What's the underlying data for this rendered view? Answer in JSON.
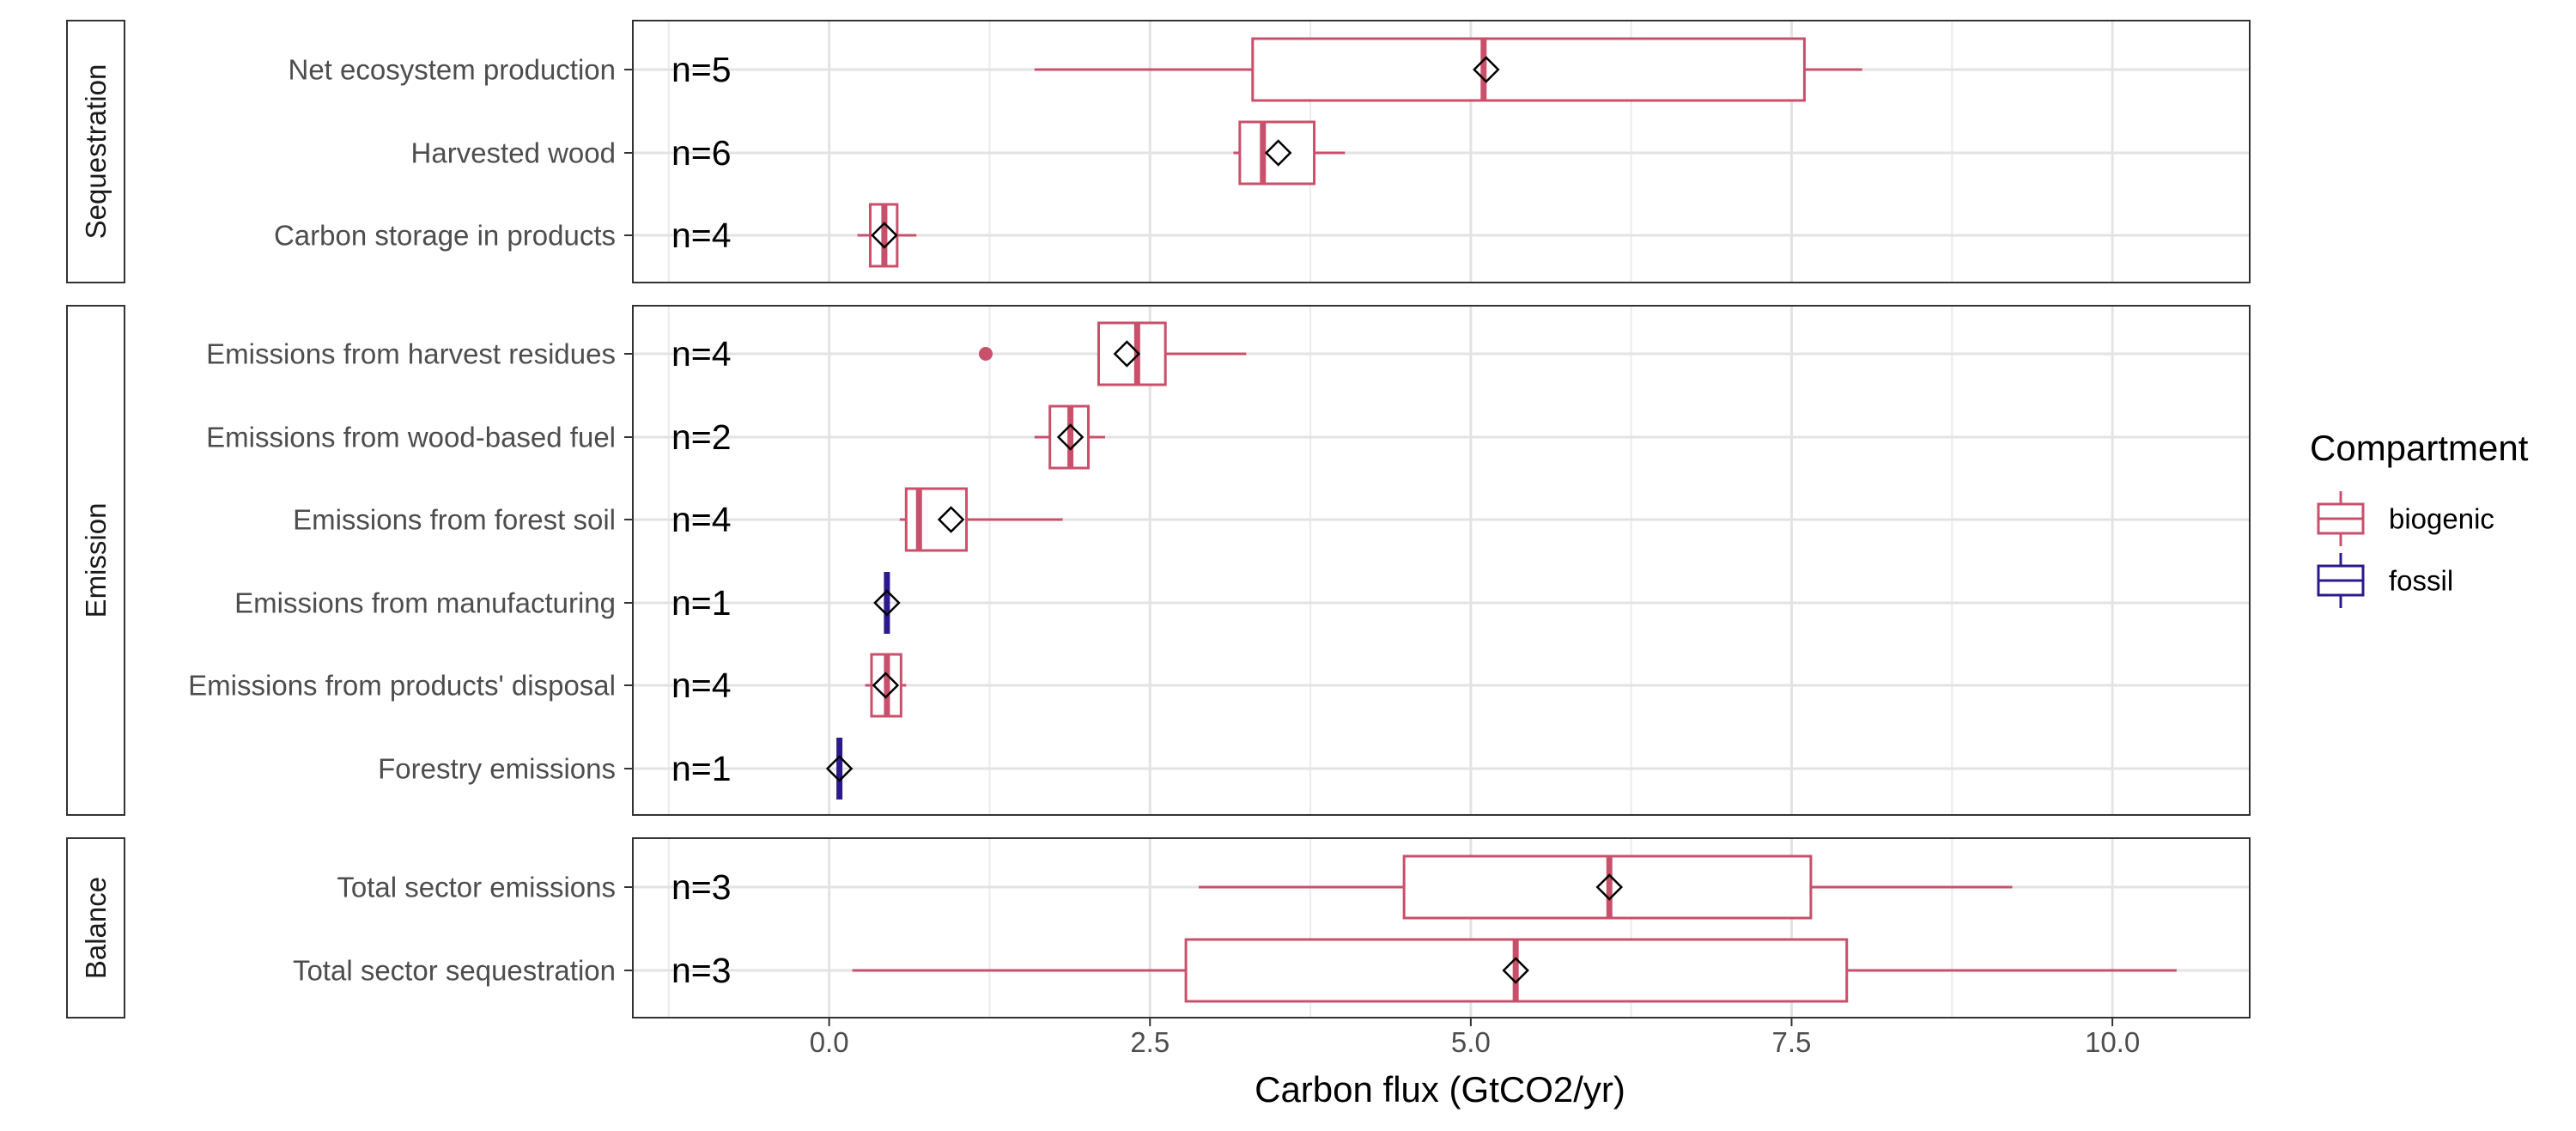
{
  "chart_data": {
    "type": "boxplot",
    "title": "",
    "xlabel": "Carbon flux (GtCO2/yr)",
    "ylabel": "",
    "xlim": [
      -1.53,
      11.07
    ],
    "x_ticks": [
      "0.0",
      "2.5",
      "5.0",
      "7.5",
      "10.0"
    ],
    "x_tick_values": [
      0,
      2.5,
      5,
      7.5,
      10
    ],
    "grid": true,
    "legend": {
      "title": "Compartment",
      "position": "right",
      "entries": [
        {
          "label": "biogenic",
          "color": "#c9506b"
        },
        {
          "label": "fossil",
          "color": "#2c1a8a"
        }
      ]
    },
    "colors": {
      "biogenic": "#c9506b",
      "fossil": "#2c1a8a",
      "mean_marker": "#000000"
    },
    "panels": [
      {
        "label": "Sequestration",
        "rows": [
          {
            "name": "Net ecosystem production",
            "n_label": "n=5",
            "compartment": "biogenic",
            "whisker_low": 1.6,
            "q1": 3.3,
            "median": 5.1,
            "q3": 7.6,
            "whisker_high": 8.05,
            "mean": 5.12,
            "outliers": []
          },
          {
            "name": "Harvested wood",
            "n_label": "n=6",
            "compartment": "biogenic",
            "whisker_low": 3.15,
            "q1": 3.2,
            "median": 3.38,
            "q3": 3.78,
            "whisker_high": 4.02,
            "mean": 3.5,
            "outliers": []
          },
          {
            "name": "Carbon storage in products",
            "n_label": "n=4",
            "compartment": "biogenic",
            "whisker_low": 0.22,
            "q1": 0.32,
            "median": 0.43,
            "q3": 0.53,
            "whisker_high": 0.68,
            "mean": 0.43,
            "outliers": []
          }
        ]
      },
      {
        "label": "Emission",
        "rows": [
          {
            "name": "Emissions from harvest residues",
            "n_label": "n=4",
            "compartment": "biogenic",
            "whisker_low": 2.1,
            "q1": 2.1,
            "median": 2.4,
            "q3": 2.62,
            "whisker_high": 3.25,
            "mean": 2.32,
            "outliers": [
              1.22
            ]
          },
          {
            "name": "Emissions from wood-based fuel",
            "n_label": "n=2",
            "compartment": "biogenic",
            "whisker_low": 1.6,
            "q1": 1.72,
            "median": 1.88,
            "q3": 2.02,
            "whisker_high": 2.15,
            "mean": 1.88,
            "outliers": []
          },
          {
            "name": "Emissions from forest soil",
            "n_label": "n=4",
            "compartment": "biogenic",
            "whisker_low": 0.55,
            "q1": 0.6,
            "median": 0.7,
            "q3": 1.07,
            "whisker_high": 1.82,
            "mean": 0.95,
            "outliers": []
          },
          {
            "name": "Emissions from manufacturing",
            "n_label": "n=1",
            "compartment": "fossil",
            "whisker_low": 0.45,
            "q1": 0.45,
            "median": 0.45,
            "q3": 0.45,
            "whisker_high": 0.45,
            "mean": 0.45,
            "outliers": []
          },
          {
            "name": "Emissions from products' disposal",
            "n_label": "n=4",
            "compartment": "biogenic",
            "whisker_low": 0.28,
            "q1": 0.33,
            "median": 0.45,
            "q3": 0.56,
            "whisker_high": 0.6,
            "mean": 0.44,
            "outliers": []
          },
          {
            "name": "Forestry emissions",
            "n_label": "n=1",
            "compartment": "fossil",
            "whisker_low": 0.08,
            "q1": 0.08,
            "median": 0.08,
            "q3": 0.08,
            "whisker_high": 0.08,
            "mean": 0.08,
            "outliers": []
          }
        ]
      },
      {
        "label": "Balance",
        "rows": [
          {
            "name": "Total sector emissions",
            "n_label": "n=3",
            "compartment": "biogenic",
            "whisker_low": 2.88,
            "q1": 4.48,
            "median": 6.08,
            "q3": 7.65,
            "whisker_high": 9.22,
            "mean": 6.08,
            "outliers": []
          },
          {
            "name": "Total sector sequestration",
            "n_label": "n=3",
            "compartment": "biogenic",
            "whisker_low": 0.18,
            "q1": 2.78,
            "median": 5.35,
            "q3": 7.93,
            "whisker_high": 10.5,
            "mean": 5.35,
            "outliers": []
          }
        ]
      }
    ]
  }
}
